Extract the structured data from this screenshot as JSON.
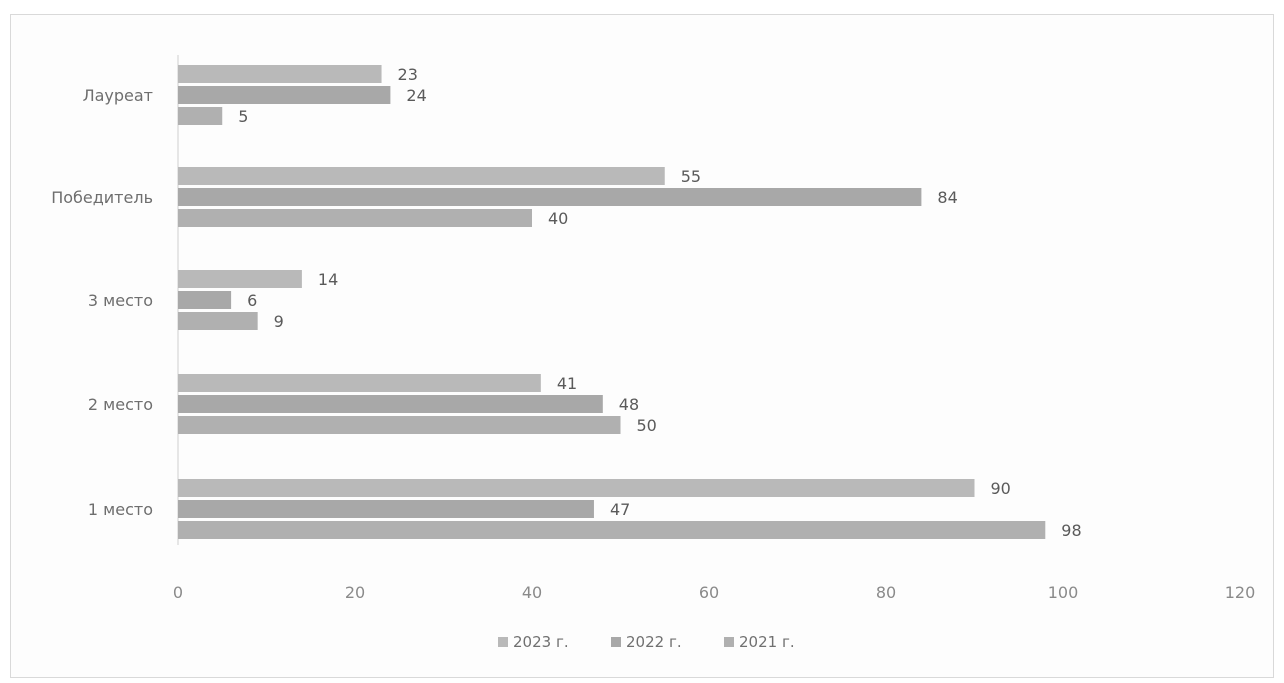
{
  "chart_data": {
    "type": "bar",
    "orientation": "horizontal",
    "categories": [
      "Лауреат",
      "Победитель",
      "3 место",
      "2 место",
      "1 место"
    ],
    "series": [
      {
        "name": "2023 г.",
        "values": [
          23,
          55,
          14,
          41,
          90
        ],
        "color": "#b9b9b9"
      },
      {
        "name": "2022 г.",
        "values": [
          24,
          84,
          6,
          48,
          47
        ],
        "color": "#a8a8a8"
      },
      {
        "name": "2021 г.",
        "values": [
          5,
          40,
          9,
          50,
          98
        ],
        "color": "#b0b0b0"
      }
    ],
    "x_ticks": [
      0,
      20,
      40,
      60,
      80,
      100,
      120
    ],
    "xlim": [
      0,
      120
    ],
    "grid": false,
    "legend_position": "bottom",
    "data_labels": true
  }
}
